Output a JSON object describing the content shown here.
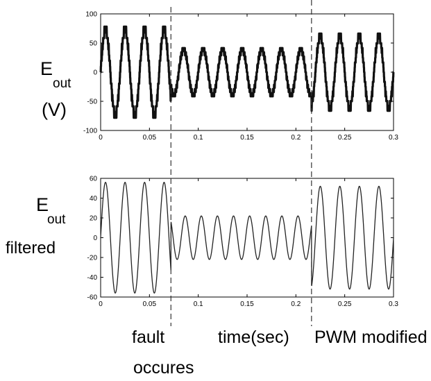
{
  "chart_data": [
    {
      "type": "line",
      "ylabel_main": "E",
      "ylabel_sub": "out",
      "ylabel_line2": "(V)",
      "xlim": [
        0,
        0.3
      ],
      "ylim": [
        -100,
        100
      ],
      "xticks": [
        "0",
        "0.05",
        "0.1",
        "0.15",
        "0.2",
        "0.25",
        "0.3"
      ],
      "xtick_values": [
        0,
        0.05,
        0.1,
        0.15,
        0.2,
        0.25,
        0.3
      ],
      "yticks": [
        "100",
        "50",
        "0",
        "-50",
        "-100"
      ],
      "ytick_values": [
        100,
        50,
        0,
        -50,
        -100
      ],
      "series": [
        {
          "description": "PWM stepped output voltage",
          "segments": [
            {
              "x_start": 0,
              "x_end": 0.072,
              "period": 0.02,
              "amplitude": 85,
              "steps": 7
            },
            {
              "x_start": 0.072,
              "x_end": 0.216,
              "period": 0.02,
              "amplitude": 45,
              "steps": 5
            },
            {
              "x_start": 0.216,
              "x_end": 0.3,
              "period": 0.02,
              "amplitude": 72,
              "steps": 7
            }
          ]
        }
      ],
      "grid": false
    },
    {
      "type": "line",
      "ylabel_main": "E",
      "ylabel_sub": "out",
      "ylabel_line2": "filtered",
      "xlim": [
        0,
        0.3
      ],
      "ylim": [
        -60,
        60
      ],
      "xticks": [
        "0",
        "0.05",
        "0.1",
        "0.15",
        "0.2",
        "0.25",
        "0.3"
      ],
      "xtick_values": [
        0,
        0.05,
        0.1,
        0.15,
        0.2,
        0.25,
        0.3
      ],
      "yticks": [
        "60",
        "40",
        "20",
        "0",
        "-20",
        "-40",
        "-60"
      ],
      "ytick_values": [
        60,
        40,
        20,
        0,
        -20,
        -40,
        -60
      ],
      "series": [
        {
          "description": "Filtered output voltage",
          "segments": [
            {
              "x_start": 0,
              "x_end": 0.072,
              "period": 0.02,
              "amplitude": 56,
              "offset": 0
            },
            {
              "x_start": 0.072,
              "x_end": 0.216,
              "period": 0.0165,
              "amplitude": 22,
              "offset": 0
            },
            {
              "x_start": 0.216,
              "x_end": 0.3,
              "period": 0.02,
              "amplitude": 52,
              "offset": 0
            }
          ]
        }
      ],
      "grid": false
    }
  ],
  "events": [
    {
      "x": 0.072,
      "label_line1": "fault",
      "label_line2": "occures"
    },
    {
      "x": 0.216,
      "label_line1": "PWM modified",
      "label_line2": ""
    }
  ],
  "xlabel": "time(sec)"
}
